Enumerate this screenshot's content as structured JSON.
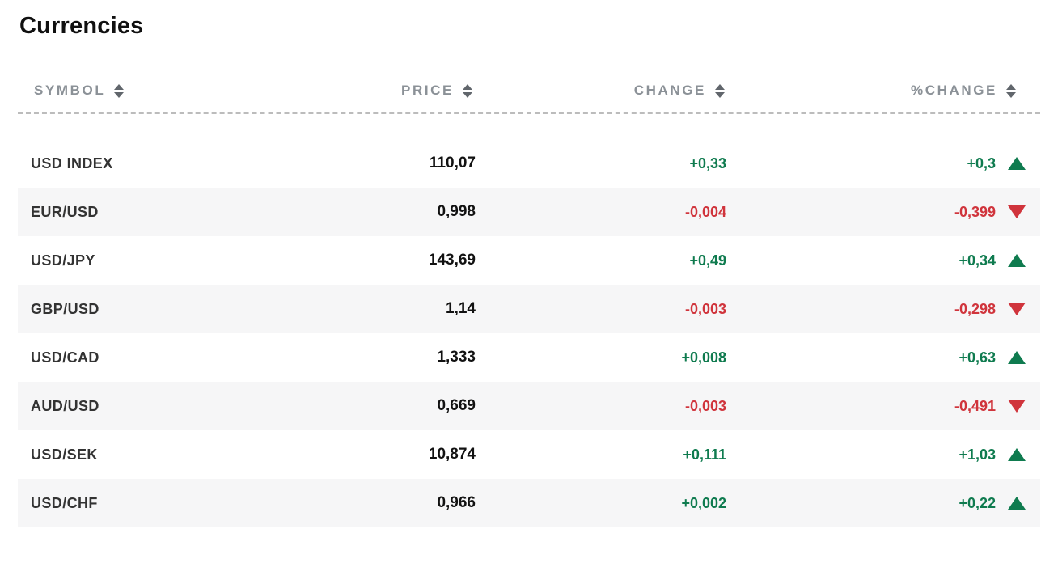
{
  "page": {
    "title": "Currencies"
  },
  "table": {
    "columns": [
      {
        "id": "symbol",
        "label": "SYMBOL"
      },
      {
        "id": "price",
        "label": "PRICE"
      },
      {
        "id": "change",
        "label": "CHANGE"
      },
      {
        "id": "pct_change",
        "label": "%CHANGE"
      }
    ],
    "rows": [
      {
        "symbol": "USD INDEX",
        "price": "110,07",
        "change": "+0,33",
        "pct_change": "+0,3",
        "direction": "up"
      },
      {
        "symbol": "EUR/USD",
        "price": "0,998",
        "change": "-0,004",
        "pct_change": "-0,399",
        "direction": "down"
      },
      {
        "symbol": "USD/JPY",
        "price": "143,69",
        "change": "+0,49",
        "pct_change": "+0,34",
        "direction": "up"
      },
      {
        "symbol": "GBP/USD",
        "price": "1,14",
        "change": "-0,003",
        "pct_change": "-0,298",
        "direction": "down"
      },
      {
        "symbol": "USD/CAD",
        "price": "1,333",
        "change": "+0,008",
        "pct_change": "+0,63",
        "direction": "up"
      },
      {
        "symbol": "AUD/USD",
        "price": "0,669",
        "change": "-0,003",
        "pct_change": "-0,491",
        "direction": "down"
      },
      {
        "symbol": "USD/SEK",
        "price": "10,874",
        "change": "+0,111",
        "pct_change": "+1,03",
        "direction": "up"
      },
      {
        "symbol": "USD/CHF",
        "price": "0,966",
        "change": "+0,002",
        "pct_change": "+0,22",
        "direction": "up"
      }
    ]
  },
  "icons": {
    "sort": "sort-arrows-icon",
    "up": "triangle-up-icon",
    "down": "triangle-down-icon"
  },
  "colors": {
    "positive": "#0f7b4f",
    "negative": "#d0343c",
    "header_text": "#8b9197",
    "row_alt_bg": "#f6f6f7",
    "title_text": "#101010"
  }
}
